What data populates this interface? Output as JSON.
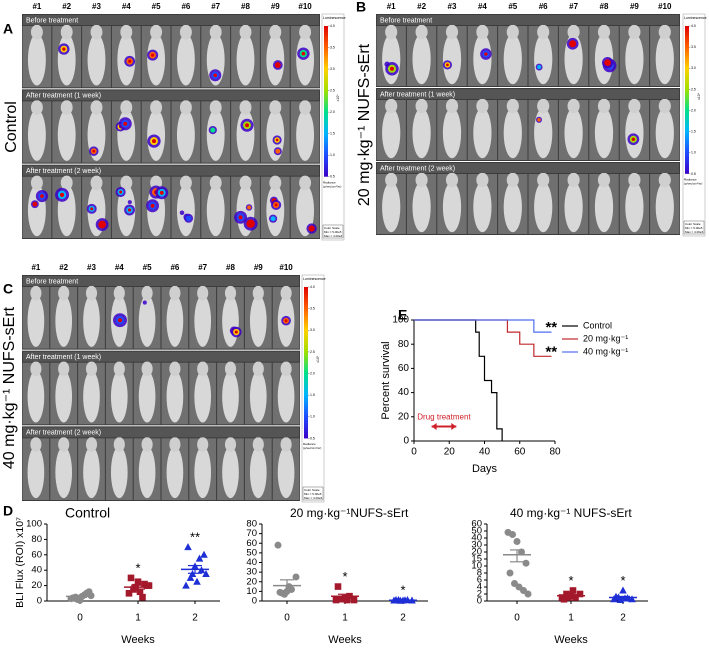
{
  "image_panels": [
    {
      "label": "A",
      "title": "Control",
      "mice": [
        "#1",
        "#2",
        "#3",
        "#4",
        "#5",
        "#6",
        "#7",
        "#8",
        "#9",
        "#10"
      ],
      "rows": [
        "Before treatment",
        "After treatment (1 week)",
        "After treatment (2 week)"
      ],
      "colorbar": {
        "title": "Luminescence",
        "ticks": [
          {
            "value": 4,
            "label": "4.0"
          },
          {
            "value": 3.5,
            "label": "3.5"
          },
          {
            "value": 3,
            "label": "3.0"
          },
          {
            "value": 2.5,
            "label": "2.5"
          },
          {
            "value": 2,
            "label": "2.0"
          },
          {
            "value": 1.5,
            "label": "1.5"
          },
          {
            "value": 1,
            "label": "1.0"
          },
          {
            "value": 0.5,
            "label": "0.5"
          }
        ],
        "unit": "x10⁶",
        "radiance": [
          "Radiance",
          "(p/sec/cm²/sr)"
        ],
        "scale": [
          "Color Scale",
          "Min = 5.00e5",
          "Max = 4.00e6"
        ]
      }
    },
    {
      "label": "B",
      "title": "20 mg·kg⁻¹ NUFS-sErt",
      "mice": [
        "#1",
        "#2",
        "#3",
        "#4",
        "#5",
        "#6",
        "#7",
        "#8",
        "#9",
        "#10"
      ],
      "rows": [
        "Before treatment",
        "After treatment (1 week)",
        "After treatment (2 week)"
      ],
      "colorbar": {
        "title": "Luminescence",
        "ticks": [
          {
            "value": 4,
            "label": "4.0"
          },
          {
            "value": 3.5,
            "label": "3.5"
          },
          {
            "value": 3,
            "label": "3.0"
          },
          {
            "value": 2.5,
            "label": "2.5"
          },
          {
            "value": 2,
            "label": "2.0"
          },
          {
            "value": 1.5,
            "label": "1.5"
          },
          {
            "value": 1,
            "label": "1.0"
          },
          {
            "value": 0.5,
            "label": "0.5"
          }
        ],
        "unit": "x10⁶",
        "radiance": [
          "Radiance",
          "(p/sec/cm²/sr)"
        ],
        "scale": [
          "Color Scale",
          "Min = 5.00e5",
          "Max = 4.00e6"
        ]
      }
    },
    {
      "label": "C",
      "title": "40 mg·kg⁻¹ NUFS-sErt",
      "mice": [
        "#1",
        "#2",
        "#3",
        "#4",
        "#5",
        "#6",
        "#7",
        "#8",
        "#9",
        "#10"
      ],
      "rows": [
        "Before treatment",
        "After treatment (1 week)",
        "After treatment (2 week)"
      ],
      "colorbar": {
        "title": "Luminescence",
        "ticks": [
          {
            "value": 4,
            "label": "4.0"
          },
          {
            "value": 3.5,
            "label": "3.5"
          },
          {
            "value": 3,
            "label": "3.0"
          },
          {
            "value": 2.5,
            "label": "2.5"
          },
          {
            "value": 2,
            "label": "2.0"
          },
          {
            "value": 1.5,
            "label": "1.5"
          },
          {
            "value": 1,
            "label": "1.0"
          },
          {
            "value": 0.5,
            "label": "0.5"
          }
        ],
        "unit": "x10⁶",
        "radiance": [
          "Radiance",
          "(p/sec/cm²/sr)"
        ],
        "scale": [
          "Color Scale",
          "Min = 5.00e5",
          "Max = 4.00e6"
        ]
      }
    }
  ],
  "chart_data": [
    {
      "type": "survival",
      "panel": "E",
      "ylabel": "Percent survival",
      "xlabel": "Days",
      "xlim": [
        0,
        80
      ],
      "xticks": [
        0,
        20,
        40,
        60,
        80
      ],
      "ylim": [
        0,
        100
      ],
      "yticks": [
        0,
        20,
        40,
        60,
        80,
        100
      ],
      "series": [
        {
          "name": "Control",
          "color": "#000000",
          "x": [
            0,
            35,
            37,
            40,
            44,
            47,
            50
          ],
          "values": [
            100,
            90,
            70,
            50,
            40,
            10,
            0
          ]
        },
        {
          "name": "20 mg·kg⁻¹",
          "color": "#c0282d",
          "x": [
            0,
            53,
            60,
            68,
            78
          ],
          "values": [
            100,
            90,
            80,
            70,
            70
          ],
          "annotation": "**"
        },
        {
          "name": "40 mg·kg⁻¹",
          "color": "#4f6ef0",
          "x": [
            0,
            68,
            78
          ],
          "values": [
            100,
            90,
            90
          ],
          "annotation": "**"
        }
      ],
      "annotation": {
        "text": "Drug treatment",
        "x": [
          10,
          24
        ],
        "y": 12,
        "color": "#d0202a"
      }
    },
    {
      "type": "dot",
      "panel": "D",
      "title": "Control",
      "ylabel": "BLI Flux (ROI) x10⁷",
      "xlabel": "Weeks",
      "categories": [
        "0",
        "1",
        "2"
      ],
      "ylim": [
        0,
        100
      ],
      "yticks": [
        0,
        20,
        40,
        60,
        80,
        100
      ],
      "groups": [
        [
          3,
          5,
          1,
          8,
          12,
          4,
          2,
          6,
          10,
          7
        ],
        [
          10,
          15,
          25,
          5,
          20,
          30,
          18,
          12,
          22,
          20
        ],
        [
          20,
          30,
          45,
          55,
          60,
          70,
          35,
          25,
          40,
          35
        ]
      ],
      "mean": [
        6,
        18,
        41
      ],
      "sem": [
        1.2,
        2.5,
        5
      ],
      "colors": [
        "#8a8a8a",
        "#a3182a",
        "#1f2fd6"
      ],
      "markers": [
        "circle",
        "square",
        "triangle"
      ],
      "annotations": [
        null,
        "*",
        "**"
      ]
    },
    {
      "type": "dot",
      "title": "20 mg·kg⁻¹NUFS-sErt",
      "xlabel": "Weeks",
      "categories": [
        "0",
        "1",
        "2"
      ],
      "ylim": [
        0,
        80
      ],
      "yticks": [
        0,
        10,
        20,
        30,
        40,
        50,
        60,
        70,
        80
      ],
      "groups": [
        [
          58,
          8,
          10,
          12,
          25,
          9,
          7,
          15
        ],
        [
          1,
          2,
          3,
          5,
          1,
          15,
          2,
          1
        ],
        [
          0.5,
          1,
          0.5,
          1,
          0.5,
          1,
          0.3,
          0.8
        ]
      ],
      "mean": [
        16,
        5,
        0.8
      ],
      "sem": [
        6,
        2,
        0.2
      ],
      "colors": [
        "#8a8a8a",
        "#a3182a",
        "#1f2fd6"
      ],
      "markers": [
        "circle",
        "square",
        "triangle"
      ],
      "annotations": [
        null,
        "*",
        "*"
      ]
    },
    {
      "type": "dot",
      "title": "40 mg·kg⁻¹ NUFS-sErt",
      "xlabel": "Weeks",
      "categories": [
        "0",
        "1",
        "2"
      ],
      "ylim": [
        0,
        60
      ],
      "yticks": [
        0,
        2,
        4,
        6,
        8,
        10,
        15,
        20,
        30,
        40,
        50,
        60
      ],
      "groups": [
        [
          48,
          45,
          35,
          20,
          12,
          8,
          5,
          4,
          3,
          2
        ],
        [
          1,
          2,
          1.5,
          1,
          2,
          0.5,
          1,
          3
        ],
        [
          0.5,
          1,
          3,
          0.8,
          0.5,
          1.2,
          0.3,
          0.7
        ]
      ],
      "mean": [
        18,
        1.5,
        1
      ],
      "sem": [
        5,
        0.3,
        0.3
      ],
      "colors": [
        "#8a8a8a",
        "#a3182a",
        "#1f2fd6"
      ],
      "markers": [
        "circle",
        "square",
        "triangle"
      ],
      "annotations": [
        null,
        "*",
        "*"
      ]
    }
  ]
}
